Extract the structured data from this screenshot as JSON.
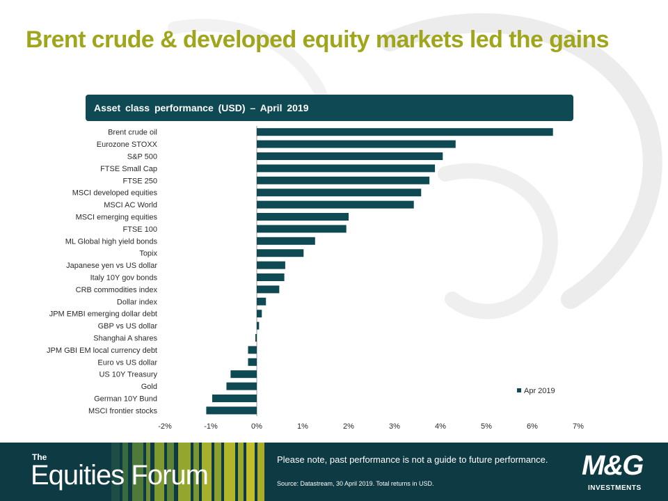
{
  "slide": {
    "title": "Brent crude & developed equity markets led the gains",
    "chart_header": "Asset class performance (USD) – April 2019"
  },
  "chart_data": {
    "type": "bar",
    "orientation": "horizontal",
    "categories": [
      "Brent crude oil",
      "Eurozone STOXX",
      "S&P 500",
      "FTSE Small Cap",
      "FTSE 250",
      "MSCI developed equities",
      "MSCI AC World",
      "MSCI emerging equities",
      "FTSE 100",
      "ML Global high yield bonds",
      "Topix",
      "Japanese yen vs US dollar",
      "Italy 10Y gov bonds",
      "CRB commodities index",
      "Dollar index",
      "JPM EMBI emerging dollar debt",
      "GBP vs US dollar",
      "Shanghai A shares",
      "JPM GBI EM local currency debt",
      "Euro vs US dollar",
      "US 10Y Treasury",
      "Gold",
      "German 10Y Bund",
      "MSCI frontier stocks"
    ],
    "series": [
      {
        "name": "Apr 2019",
        "color": "#0f4a54",
        "values": [
          6.45,
          4.33,
          4.05,
          3.88,
          3.76,
          3.58,
          3.42,
          2.0,
          1.95,
          1.27,
          1.02,
          0.62,
          0.6,
          0.49,
          0.2,
          0.11,
          0.05,
          -0.03,
          -0.19,
          -0.19,
          -0.57,
          -0.66,
          -0.97,
          -1.1
        ]
      }
    ],
    "xlim": [
      -2,
      7
    ],
    "xticks": [
      "-2%",
      "-1%",
      "0%",
      "1%",
      "2%",
      "3%",
      "4%",
      "5%",
      "6%",
      "7%"
    ],
    "legend_position": "bottom-right",
    "grid": false
  },
  "footer": {
    "brand_the": "The",
    "brand_name": "Equities Forum",
    "note": "Please note, past performance is not a guide to future performance.",
    "source": "Source: Datastream, 30 April 2019. Total returns in USD.",
    "logo_main": "M&G",
    "logo_sub": "INVESTMENTS"
  }
}
